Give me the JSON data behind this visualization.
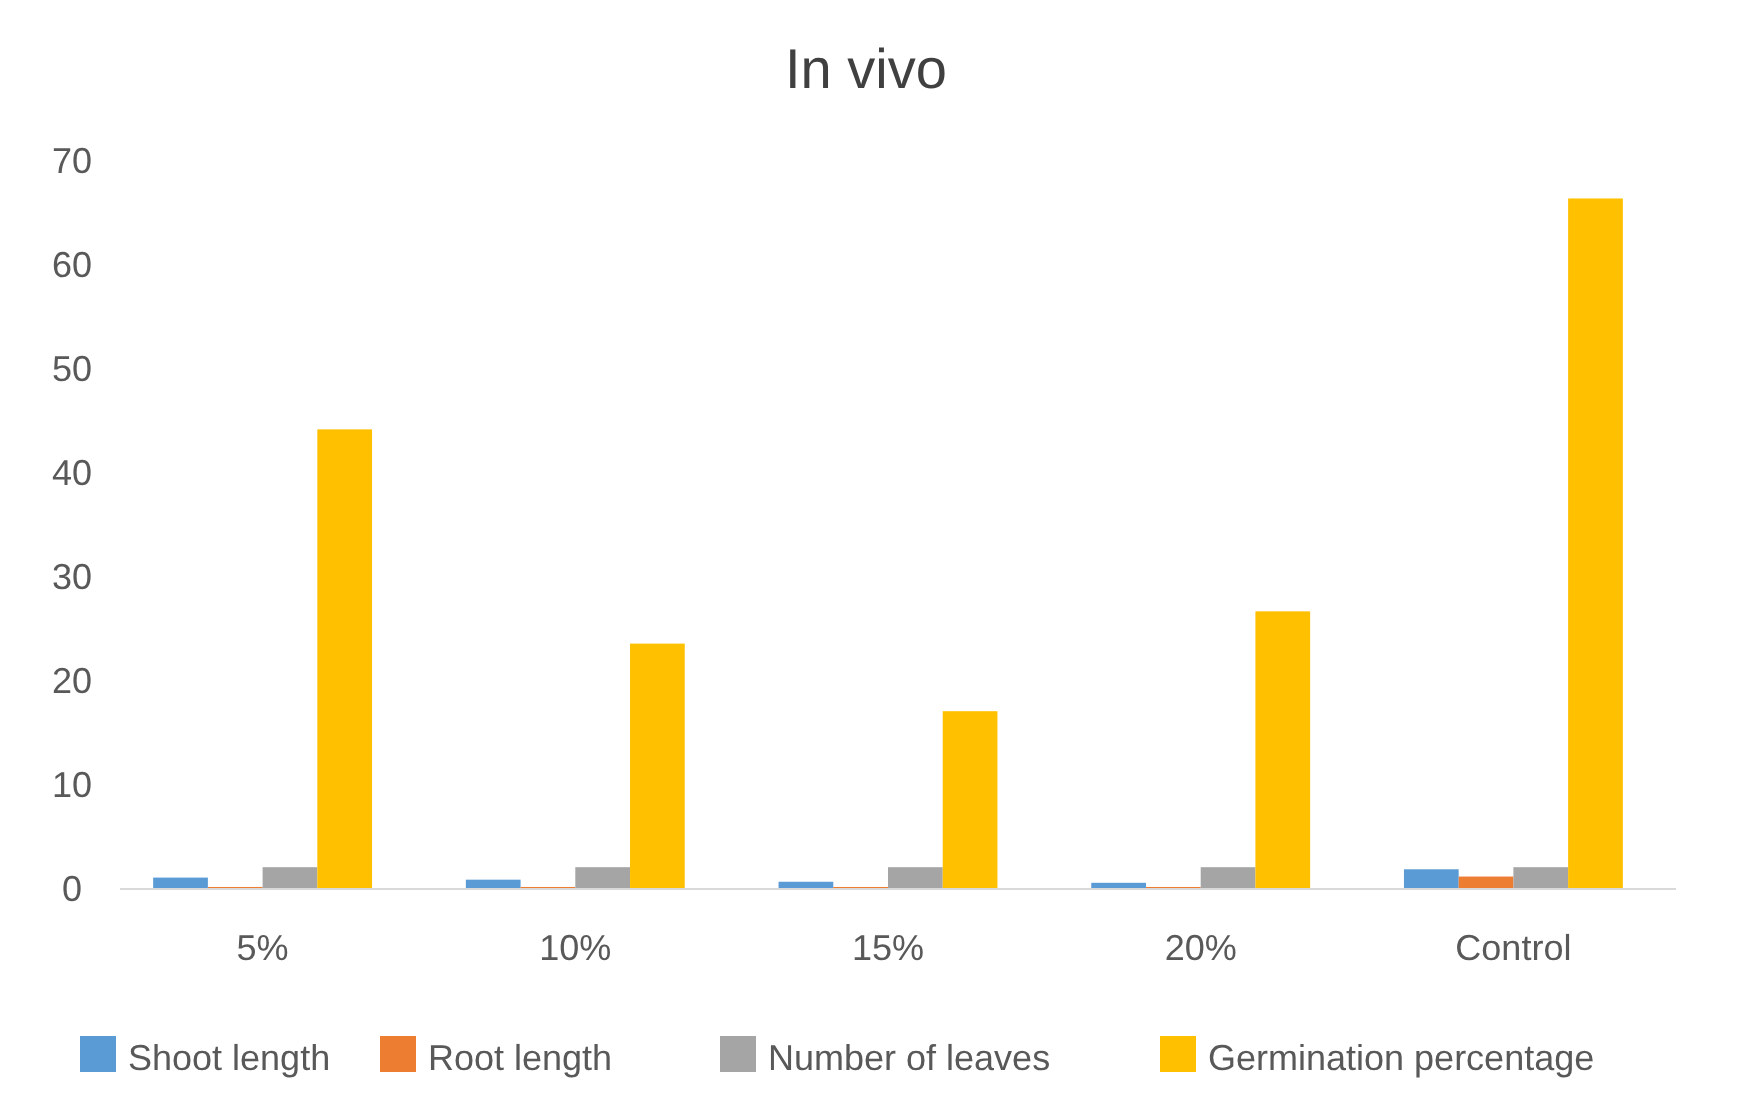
{
  "chart_data": {
    "type": "bar",
    "title": "In vivo",
    "categories": [
      "5%",
      "10%",
      "15%",
      "20%",
      "Control"
    ],
    "series": [
      {
        "name": "Shoot length",
        "color": "#5b9bd5",
        "values": [
          1.0,
          0.8,
          0.6,
          0.5,
          1.8
        ]
      },
      {
        "name": "Root length",
        "color": "#ed7d31",
        "values": [
          0.1,
          0.1,
          0.1,
          0.1,
          1.1
        ]
      },
      {
        "name": "Number of leaves",
        "color": "#a5a5a5",
        "values": [
          2.0,
          2.0,
          2.0,
          2.0,
          2.0
        ]
      },
      {
        "name": "Germination percentage",
        "color": "#ffc000",
        "values": [
          44.1,
          23.5,
          17.0,
          26.6,
          66.3
        ]
      }
    ],
    "ylim": [
      0,
      70
    ],
    "yticks": [
      0,
      10,
      20,
      30,
      40,
      50,
      60,
      70
    ],
    "grid": false,
    "legend": "bottom"
  }
}
